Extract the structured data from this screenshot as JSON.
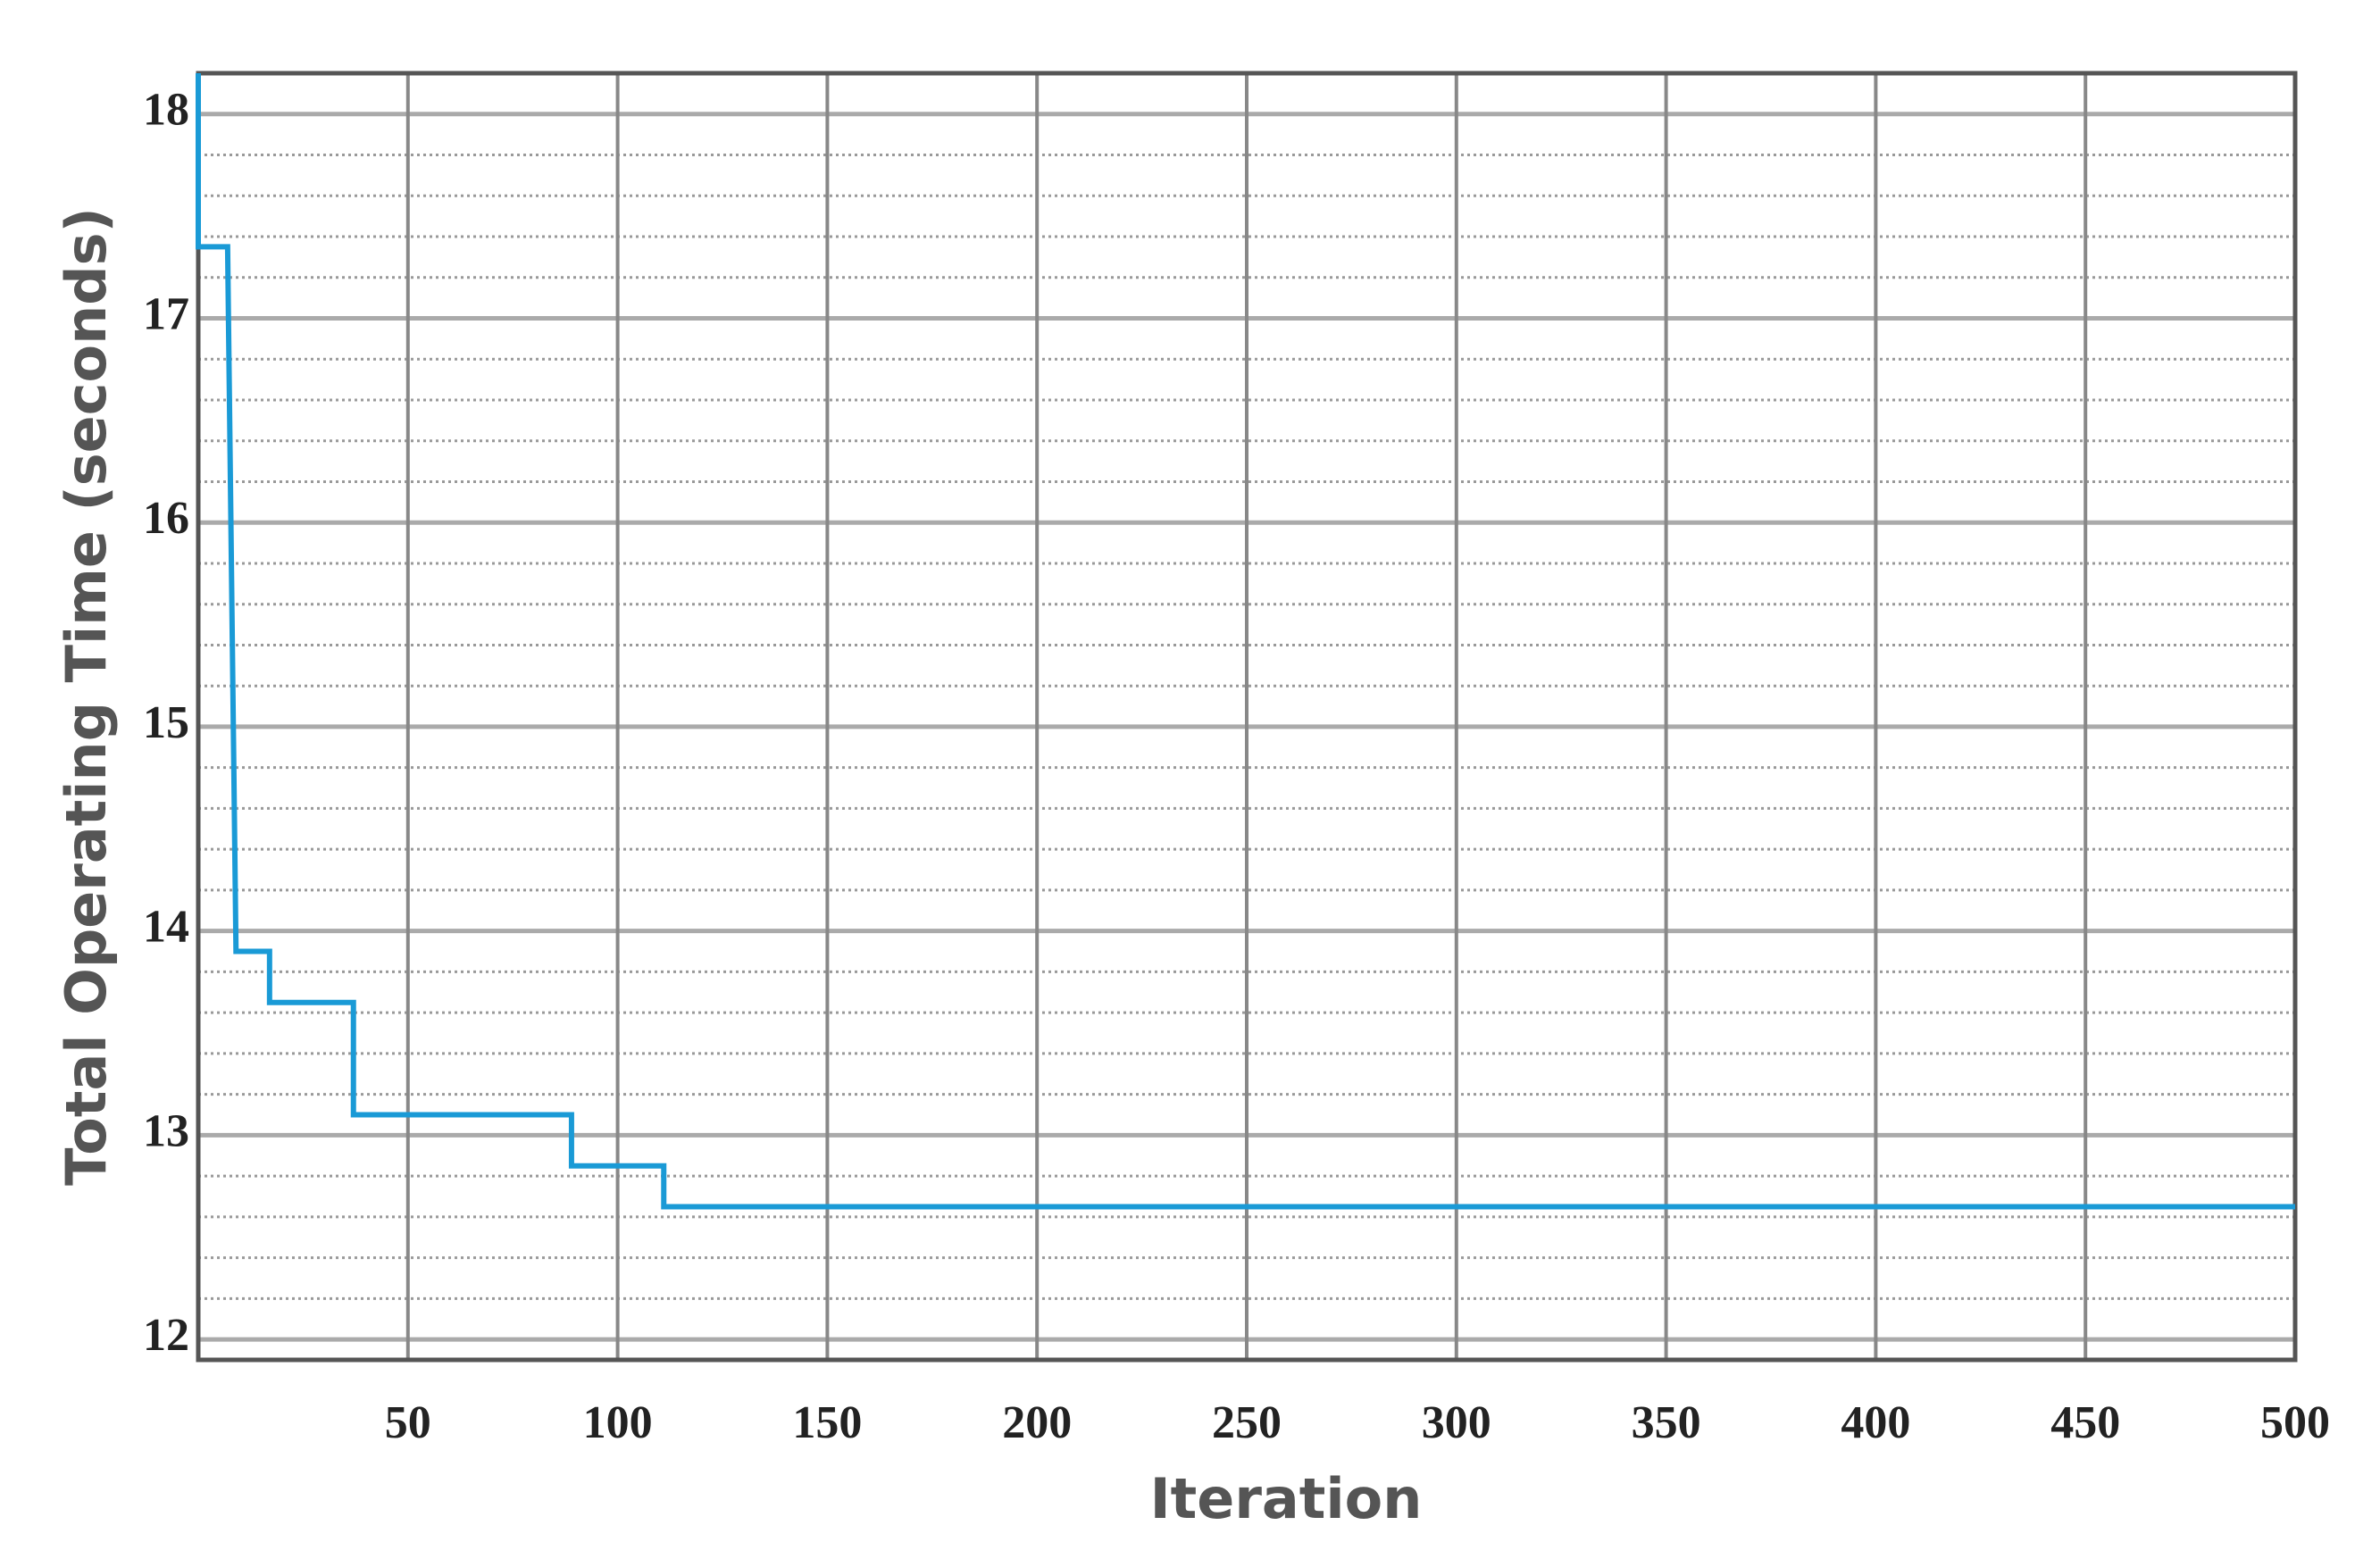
{
  "chart_data": {
    "type": "line",
    "x_label": "Iteration",
    "y_label": "Total Operating Time (seconds)",
    "x": [
      0,
      0,
      7,
      9,
      17,
      17,
      37,
      37,
      89,
      89,
      111,
      111,
      500
    ],
    "series": [
      {
        "color": "#1a9ad6",
        "values": [
          18.2,
          17.35,
          17.35,
          13.9,
          13.9,
          13.65,
          13.65,
          13.1,
          13.1,
          12.85,
          12.85,
          12.65,
          12.65
        ]
      }
    ],
    "xlim": [
      0,
      500
    ],
    "xticks": [
      50,
      100,
      150,
      200,
      250,
      300,
      350,
      400,
      450,
      500
    ],
    "ylim": [
      11.9,
      18.2
    ],
    "yticks": [
      12,
      13,
      14,
      15,
      16,
      17,
      18
    ],
    "grid": true
  }
}
